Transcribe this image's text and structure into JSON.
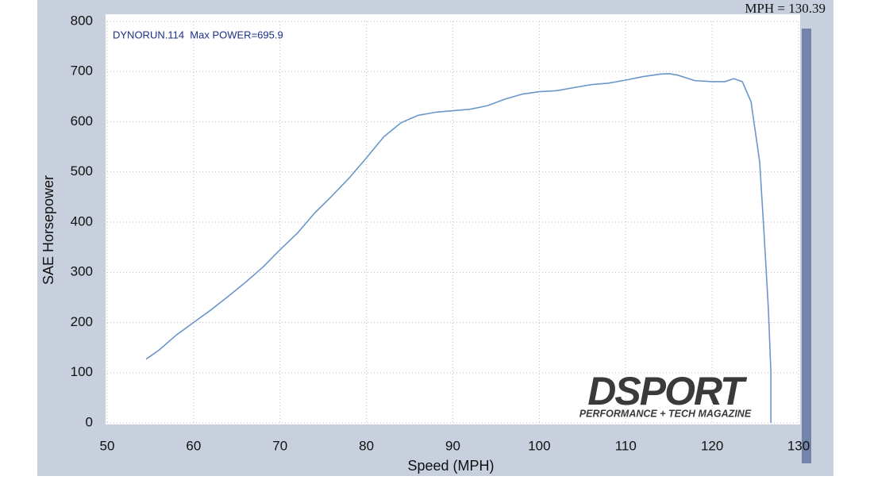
{
  "header": {
    "readout": "MPH = 130.39"
  },
  "chart_data": {
    "type": "line",
    "annotation": "DYNORUN.114  Max POWER=695.9",
    "x_label": "Speed (MPH)",
    "y_label": "SAE Horsepower",
    "x": [
      54.5,
      56,
      58,
      60,
      62,
      64,
      66,
      68,
      70,
      72,
      74,
      76,
      78,
      80,
      82,
      84,
      86,
      88,
      90,
      92,
      94,
      96,
      98,
      100,
      102,
      104,
      106,
      108,
      110,
      112,
      114,
      115,
      116,
      118,
      120,
      121.5,
      122.5,
      123.5,
      124.5,
      125.5,
      126,
      126.5,
      126.8,
      126.8
    ],
    "series": [
      {
        "color": "#6a97c9",
        "values": [
          127,
          145,
          175,
          200,
          225,
          252,
          280,
          310,
          345,
          378,
          418,
          452,
          488,
          528,
          570,
          598,
          613,
          619,
          622,
          625,
          632,
          645,
          655,
          660,
          662,
          668,
          674,
          677,
          683,
          690,
          695,
          696,
          693,
          682,
          680,
          680,
          686,
          680,
          640,
          520,
          380,
          230,
          100,
          0
        ]
      }
    ],
    "xlim": [
      50,
      130
    ],
    "ylim": [
      0,
      800
    ],
    "xticks": [
      50,
      60,
      70,
      80,
      90,
      100,
      110,
      120,
      130
    ],
    "yticks": [
      0,
      100,
      200,
      300,
      400,
      500,
      600,
      700,
      800
    ],
    "grid": true
  },
  "logo": {
    "name": "DSPORT",
    "tagline": "PERFORMANCE + TECH MAGAZINE"
  }
}
